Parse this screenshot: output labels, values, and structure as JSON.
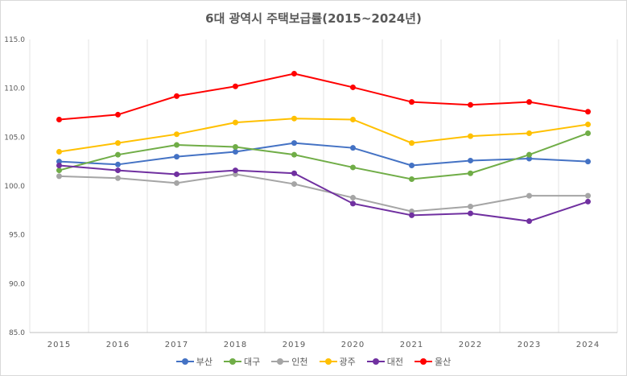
{
  "chart_data": {
    "type": "line",
    "title": "6대 광역시 주택보급률(2015~2024년)",
    "xlabel": "",
    "ylabel": "",
    "categories": [
      "2015",
      "2016",
      "2017",
      "2018",
      "2019",
      "2020",
      "2021",
      "2022",
      "2023",
      "2024"
    ],
    "ylim": [
      85,
      115
    ],
    "yticks": [
      "85.0",
      "90.0",
      "95.0",
      "100.0",
      "105.0",
      "110.0",
      "115.0"
    ],
    "grid": "vertical",
    "legend_position": "bottom",
    "series": [
      {
        "name": "부산",
        "color": "#4472c4",
        "values": [
          102.5,
          102.2,
          103.0,
          103.5,
          104.4,
          103.9,
          102.1,
          102.6,
          102.8,
          102.5
        ]
      },
      {
        "name": "대구",
        "color": "#70ad47",
        "values": [
          101.6,
          103.2,
          104.2,
          104.0,
          103.2,
          101.9,
          100.7,
          101.3,
          103.2,
          105.4
        ]
      },
      {
        "name": "인천",
        "color": "#a5a5a5",
        "values": [
          101.0,
          100.8,
          100.3,
          101.2,
          100.2,
          98.8,
          97.4,
          97.9,
          99.0,
          99.0
        ]
      },
      {
        "name": "광주",
        "color": "#ffc000",
        "values": [
          103.5,
          104.4,
          105.3,
          106.5,
          106.9,
          106.8,
          104.4,
          105.1,
          105.4,
          106.3
        ]
      },
      {
        "name": "대전",
        "color": "#7030a0",
        "values": [
          102.1,
          101.6,
          101.2,
          101.6,
          101.3,
          98.2,
          97.0,
          97.2,
          96.4,
          98.4
        ]
      },
      {
        "name": "울산",
        "color": "#ff0000",
        "values": [
          106.8,
          107.3,
          109.2,
          110.2,
          111.5,
          110.1,
          108.6,
          108.3,
          108.6,
          107.6
        ]
      }
    ]
  }
}
